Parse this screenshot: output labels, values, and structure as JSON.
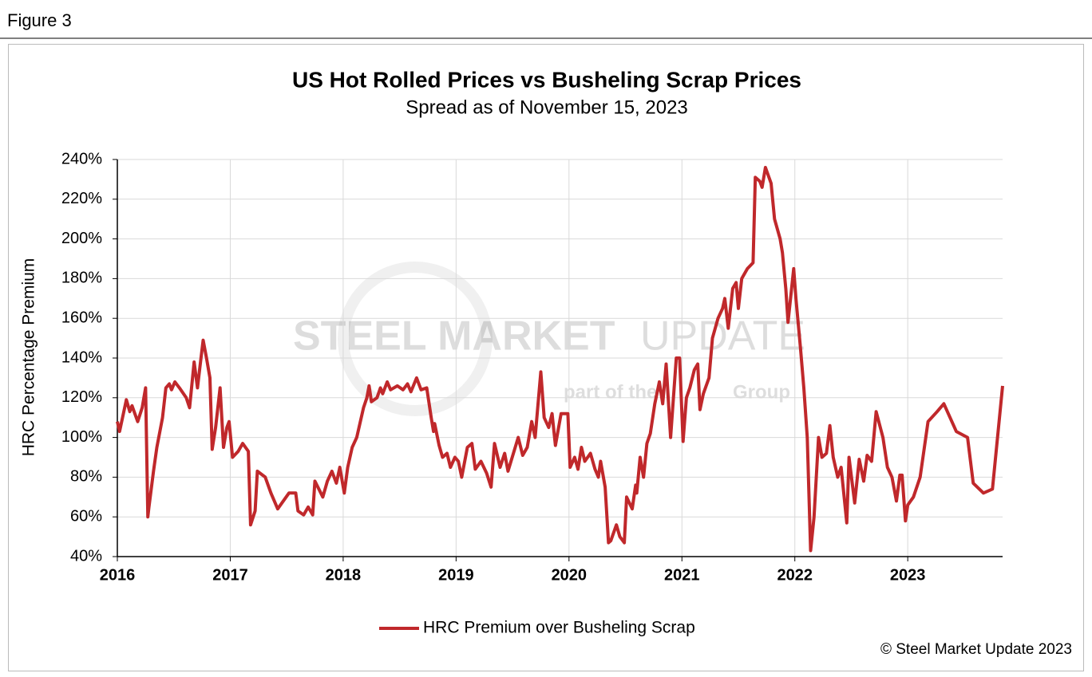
{
  "figure_label": "Figure 3",
  "chart_data": {
    "type": "line",
    "title": "US Hot Rolled Prices vs Busheling Scrap Prices",
    "subtitle": "Spread as of November 15, 2023",
    "y_label": "HRC Percentage Premium",
    "watermark": [
      "STEEL MARKET",
      "UPDATE",
      "part of the",
      "Group"
    ],
    "source": "© Steel Market Update 2023",
    "legend": "bottom",
    "grid": true,
    "xlim": [
      2016,
      2023.84
    ],
    "xticks": [
      2016,
      2017,
      2018,
      2019,
      2020,
      2021,
      2022,
      2023
    ],
    "ylim": [
      40,
      240
    ],
    "yticks": [
      {
        "value": 40,
        "label": "40%"
      },
      {
        "value": 60,
        "label": "60%"
      },
      {
        "value": 80,
        "label": "80%"
      },
      {
        "value": 100,
        "label": "100%"
      },
      {
        "value": 120,
        "label": "120%"
      },
      {
        "value": 140,
        "label": "140%"
      },
      {
        "value": 160,
        "label": "160%"
      },
      {
        "value": 180,
        "label": "180%"
      },
      {
        "value": 200,
        "label": "200%"
      },
      {
        "value": 220,
        "label": "220%"
      },
      {
        "value": 240,
        "label": "240%"
      }
    ],
    "x": [
      2016.0,
      2016.02,
      2016.08,
      2016.11,
      2016.13,
      2016.18,
      2016.22,
      2016.25,
      2016.27,
      2016.28,
      2016.32,
      2016.35,
      2016.4,
      2016.43,
      2016.46,
      2016.48,
      2016.51,
      2016.55,
      2016.61,
      2016.64,
      2016.68,
      2016.71,
      2016.73,
      2016.76,
      2016.79,
      2016.82,
      2016.84,
      2016.87,
      2016.91,
      2016.94,
      2016.97,
      2016.99,
      2017.02,
      2017.07,
      2017.11,
      2017.16,
      2017.18,
      2017.22,
      2017.24,
      2017.31,
      2017.36,
      2017.42,
      2017.47,
      2017.52,
      2017.58,
      2017.6,
      2017.65,
      2017.69,
      2017.73,
      2017.75,
      2017.82,
      2017.86,
      2017.9,
      2017.94,
      2017.97,
      2018.01,
      2018.04,
      2018.08,
      2018.12,
      2018.18,
      2018.21,
      2018.23,
      2018.25,
      2018.3,
      2018.33,
      2018.35,
      2018.39,
      2018.42,
      2018.48,
      2018.53,
      2018.57,
      2018.6,
      2018.65,
      2018.69,
      2018.74,
      2018.78,
      2018.8,
      2018.81,
      2018.85,
      2018.88,
      2018.92,
      2018.95,
      2018.99,
      2019.02,
      2019.05,
      2019.1,
      2019.14,
      2019.17,
      2019.22,
      2019.27,
      2019.31,
      2019.34,
      2019.39,
      2019.43,
      2019.46,
      2019.55,
      2019.59,
      2019.63,
      2019.67,
      2019.7,
      2019.75,
      2019.78,
      2019.82,
      2019.85,
      2019.88,
      2019.93,
      2019.99,
      2020.01,
      2020.05,
      2020.08,
      2020.11,
      2020.14,
      2020.19,
      2020.23,
      2020.26,
      2020.28,
      2020.32,
      2020.35,
      2020.37,
      2020.42,
      2020.45,
      2020.49,
      2020.51,
      2020.56,
      2020.59,
      2020.6,
      2020.63,
      2020.66,
      2020.69,
      2020.72,
      2020.76,
      2020.8,
      2020.83,
      2020.86,
      2020.9,
      2020.95,
      2020.98,
      2021.01,
      2021.04,
      2021.07,
      2021.11,
      2021.14,
      2021.16,
      2021.19,
      2021.24,
      2021.27,
      2021.32,
      2021.36,
      2021.38,
      2021.41,
      2021.45,
      2021.48,
      2021.5,
      2021.53,
      2021.58,
      2021.63,
      2021.65,
      2021.69,
      2021.71,
      2021.74,
      2021.79,
      2021.82,
      2021.87,
      2021.89,
      2021.92,
      2021.94,
      2021.99,
      2022.01,
      2022.05,
      2022.08,
      2022.11,
      2022.14,
      2022.17,
      2022.21,
      2022.24,
      2022.28,
      2022.31,
      2022.34,
      2022.38,
      2022.41,
      2022.46,
      2022.48,
      2022.53,
      2022.57,
      2022.61,
      2022.64,
      2022.68,
      2022.72,
      2022.78,
      2022.82,
      2022.86,
      2022.9,
      2022.93,
      2022.95,
      2022.98,
      2023.0,
      2023.05,
      2023.11,
      2023.18,
      2023.26,
      2023.32,
      2023.43,
      2023.53,
      2023.58,
      2023.67,
      2023.75,
      2023.84
    ],
    "series": [
      {
        "name": "HRC Premium over Busheling Scrap",
        "color": "#c0282b",
        "values": [
          108,
          103,
          119,
          113,
          116,
          108,
          115,
          125,
          60,
          65,
          83,
          95,
          110,
          125,
          127,
          124,
          128,
          125,
          120,
          115,
          138,
          125,
          135,
          149,
          140,
          130,
          94,
          105,
          125,
          95,
          105,
          108,
          90,
          93,
          97,
          93,
          56,
          63,
          83,
          80,
          72,
          64,
          68,
          72,
          72,
          63,
          61,
          65,
          61,
          78,
          70,
          78,
          83,
          77,
          85,
          72,
          85,
          95,
          100,
          115,
          120,
          126,
          118,
          120,
          125,
          122,
          128,
          124,
          126,
          124,
          127,
          123,
          130,
          124,
          125,
          110,
          103,
          107,
          96,
          90,
          92,
          85,
          90,
          88,
          80,
          95,
          97,
          84,
          88,
          82,
          75,
          97,
          85,
          92,
          83,
          100,
          91,
          95,
          108,
          100,
          133,
          110,
          105,
          112,
          96,
          112,
          112,
          85,
          90,
          84,
          95,
          88,
          92,
          84,
          80,
          88,
          75,
          47,
          48,
          56,
          50,
          47,
          70,
          64,
          76,
          72,
          90,
          80,
          97,
          102,
          117,
          128,
          117,
          137,
          100,
          140,
          140,
          98,
          120,
          125,
          134,
          137,
          114,
          122,
          130,
          150,
          160,
          165,
          170,
          155,
          175,
          178,
          165,
          180,
          185,
          188,
          231,
          229,
          226,
          236,
          228,
          210,
          200,
          193,
          175,
          158,
          185,
          170,
          145,
          125,
          100,
          43,
          60,
          100,
          90,
          92,
          106,
          90,
          80,
          85,
          57,
          90,
          67,
          89,
          78,
          91,
          88,
          113,
          100,
          85,
          80,
          68,
          81,
          81,
          58,
          66,
          70,
          80,
          108,
          113,
          117,
          103,
          100,
          77,
          72,
          74,
          126
        ]
      }
    ]
  }
}
